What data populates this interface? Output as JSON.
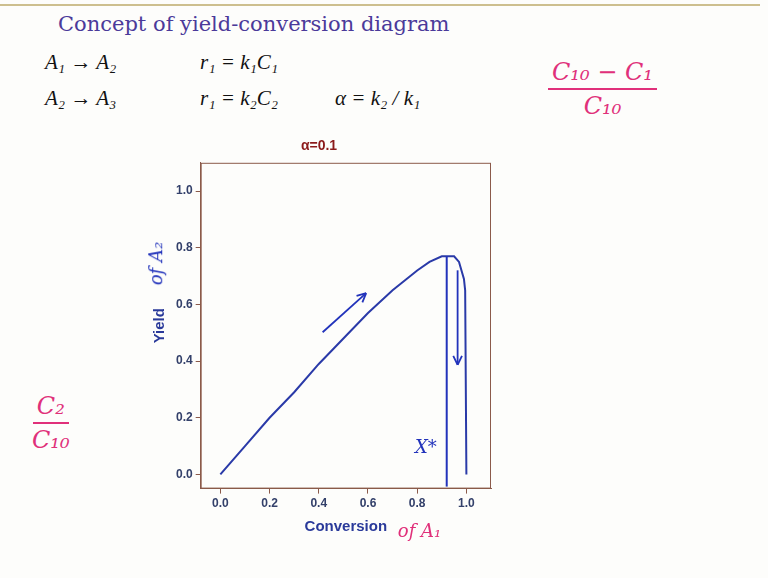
{
  "slide": {
    "title": "Concept of yield-conversion diagram",
    "equations": [
      [
        "A₁ → A₂",
        "r₁ = k₁C₁"
      ],
      [
        "A₂ → A₃",
        "r₁ = k₂C₂",
        "α = k₂ / k₁"
      ]
    ],
    "notes": [
      {
        "numerator": "C₂",
        "denominator": "C₁₀",
        "color": "#e0307a"
      },
      {
        "numerator": "C₁₀ − C₁",
        "denominator": "C₁₀",
        "color": "#e0307a"
      }
    ]
  },
  "chart_data": {
    "type": "line",
    "title": "α=0.1",
    "xlabel": "Conversion",
    "ylabel": "Yield",
    "xlabel_note": "of A₁",
    "ylabel_note": "of A₂",
    "x_star": {
      "x": 0.92,
      "label": "X*"
    },
    "x": [
      0,
      0.1,
      0.2,
      0.3,
      0.4,
      0.5,
      0.6,
      0.7,
      0.8,
      0.85,
      0.9,
      0.92,
      0.95,
      0.97,
      0.99,
      0.995,
      1.0
    ],
    "values": [
      0,
      0.1,
      0.2,
      0.29,
      0.39,
      0.48,
      0.57,
      0.65,
      0.72,
      0.75,
      0.77,
      0.77,
      0.77,
      0.75,
      0.69,
      0.65,
      0
    ],
    "color": "#2a3aa8",
    "xlim": [
      -0.08,
      1.1
    ],
    "ylim": [
      -0.05,
      1.1
    ],
    "xticks": [
      {
        "value": 0,
        "label": "0.0"
      },
      0.2,
      0.4,
      0.6,
      0.8,
      {
        "value": 1,
        "label": "1.0"
      }
    ],
    "yticks": [
      {
        "value": 0,
        "label": "0.0"
      },
      0.2,
      0.4,
      0.6,
      0.8,
      {
        "value": 1,
        "label": "1.0"
      }
    ],
    "grid": false
  }
}
